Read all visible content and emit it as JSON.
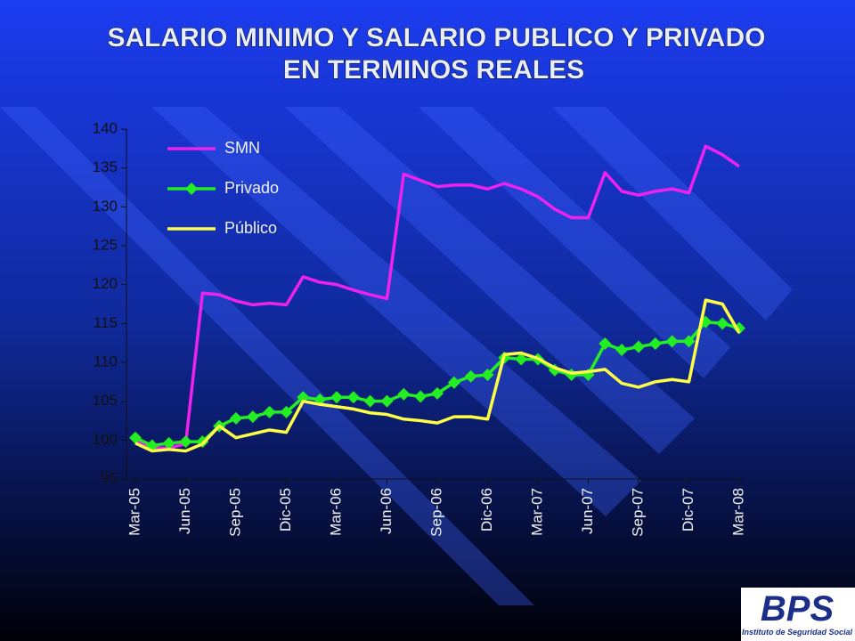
{
  "chart_data": {
    "type": "line",
    "title": [
      "SALARIO MINIMO Y SALARIO PUBLICO Y PRIVADO",
      "EN TERMINOS REALES"
    ],
    "categories": [
      "Mar-05",
      null,
      null,
      "Jun-05",
      null,
      null,
      "Sep-05",
      null,
      null,
      "Dic-05",
      null,
      null,
      "Mar-06",
      null,
      null,
      "Jun-06",
      null,
      null,
      "Sep-06",
      null,
      null,
      "Dic-06",
      null,
      null,
      "Mar-07",
      null,
      null,
      "Jun-07",
      null,
      null,
      "Sep-07",
      null,
      null,
      "Dic-07",
      null,
      null,
      "Mar-08"
    ],
    "series": [
      {
        "name": "SMN",
        "color": "#ee22ee",
        "values": [
          100,
          99,
          99,
          99.5,
          118.9,
          118.7,
          117.9,
          117.4,
          117.6,
          117.4,
          121,
          120.3,
          120,
          119.3,
          118.7,
          118.2,
          134.2,
          133.4,
          132.6,
          132.8,
          132.8,
          132.3,
          133,
          132.3,
          131.3,
          129.7,
          128.6,
          128.6,
          134.4,
          132,
          131.5,
          132,
          132.3,
          131.8,
          137.8,
          136.7,
          135.2
        ]
      },
      {
        "name": "Privado",
        "color": "#22ee22",
        "marker": "diamond",
        "values": [
          100.3,
          99.3,
          99.6,
          99.8,
          99.8,
          101.8,
          102.8,
          103,
          103.6,
          103.6,
          105.5,
          105.2,
          105.5,
          105.5,
          105,
          105,
          105.9,
          105.6,
          106,
          107.4,
          108.2,
          108.4,
          110.6,
          110.4,
          110.4,
          109,
          108.4,
          108.4,
          112.4,
          111.6,
          112,
          112.4,
          112.7,
          112.7,
          115.2,
          115,
          114.4
        ]
      },
      {
        "name": "Público",
        "color": "#ffff44",
        "values": [
          99.6,
          98.6,
          98.8,
          98.6,
          99.5,
          101.8,
          100.3,
          100.8,
          101.3,
          101,
          105,
          104.6,
          104.3,
          104,
          103.5,
          103.3,
          102.7,
          102.5,
          102.2,
          103,
          103,
          102.7,
          111,
          111.2,
          110.5,
          109.3,
          108.6,
          108.8,
          109.1,
          107.3,
          106.8,
          107.5,
          107.8,
          107.5,
          118,
          117.5,
          113.8
        ]
      }
    ],
    "ylim": [
      95,
      140
    ],
    "yticks": [
      95,
      100,
      105,
      110,
      115,
      120,
      125,
      130,
      135,
      140
    ],
    "legend": "upper-left",
    "grid": false
  },
  "logo": {
    "name": "BPS",
    "subtitle": "Instituto de Seguridad Social"
  }
}
